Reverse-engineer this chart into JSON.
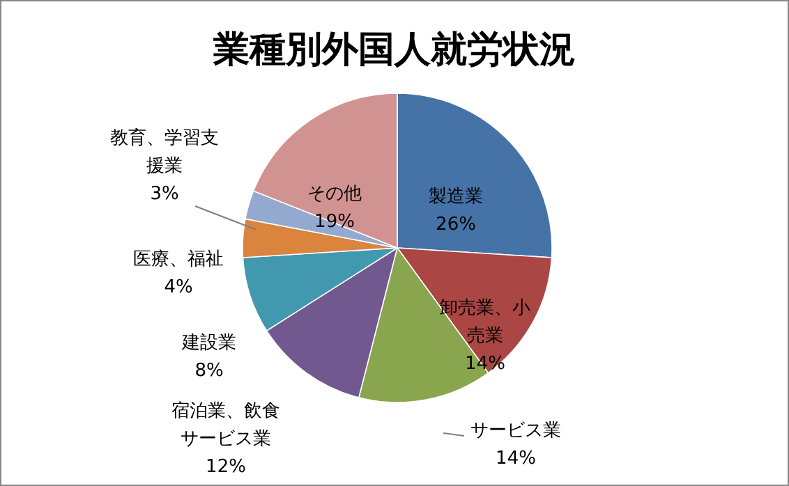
{
  "chart_data": {
    "type": "pie",
    "title": "業種別外国人就労状況",
    "categories": [
      "製造業",
      "卸売業、小売業",
      "サービス業",
      "宿泊業、飲食サービス業",
      "建設業",
      "医療、福祉",
      "教育、学習支援業",
      "その他"
    ],
    "values": [
      26,
      14,
      14,
      12,
      8,
      4,
      3,
      19
    ],
    "colors": [
      "#4572a7",
      "#aa4643",
      "#89a54e",
      "#71588f",
      "#4198af",
      "#db843d",
      "#93a9cf",
      "#d19392"
    ],
    "value_labels": [
      "26%",
      "14%",
      "14%",
      "12%",
      "8%",
      "4%",
      "3%",
      "19%"
    ]
  }
}
